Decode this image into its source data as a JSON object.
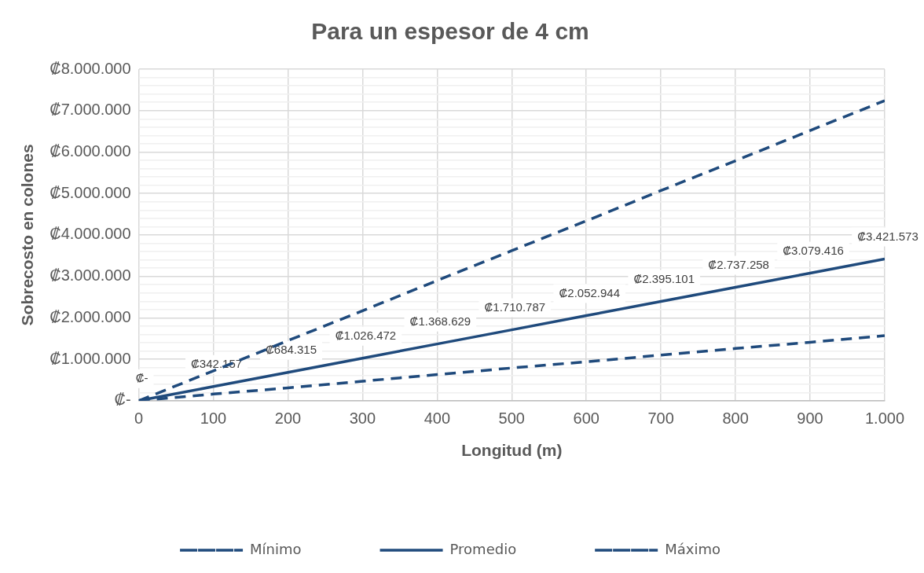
{
  "chart_data": {
    "type": "line",
    "title": "Para un espesor de 4 cm",
    "xlabel": "Longitud (m)",
    "ylabel": "Sobrecosto en colones",
    "x": [
      0,
      100,
      200,
      300,
      400,
      500,
      600,
      700,
      800,
      900,
      1000
    ],
    "series": [
      {
        "name": "Mínimo",
        "color": "#1f4a7c",
        "line_style": "dashed",
        "values": [
          0,
          160000,
          310000,
          470000,
          630000,
          790000,
          940000,
          1100000,
          1260000,
          1410000,
          1570000
        ]
      },
      {
        "name": "Promedio",
        "color": "#1f4a7c",
        "line_style": "solid",
        "values": [
          0,
          342157,
          684315,
          1026472,
          1368629,
          1710787,
          2052944,
          2395101,
          2737258,
          3079416,
          3421573
        ],
        "value_labels": [
          "₡-",
          "₡342.157",
          "₡684.315",
          "₡1.026.472",
          "₡1.368.629",
          "₡1.710.787",
          "₡2.052.944",
          "₡2.395.101",
          "₡2.737.258",
          "₡3.079.416",
          "₡3.421.573"
        ]
      },
      {
        "name": "Máximo",
        "color": "#1f4a7c",
        "line_style": "dashed",
        "values": [
          0,
          720000,
          1450000,
          2170000,
          2900000,
          3620000,
          4340000,
          5070000,
          5790000,
          6520000,
          7240000
        ]
      }
    ],
    "xlim": [
      0,
      1000
    ],
    "xticks": [
      0,
      100,
      200,
      300,
      400,
      500,
      600,
      700,
      800,
      900,
      {
        "value": 1000,
        "label": "1.000"
      }
    ],
    "ylim": [
      0,
      8000000
    ],
    "yticks": [
      {
        "value": 0,
        "label": "₡-"
      },
      {
        "value": 200000,
        "label": null
      },
      {
        "value": 400000,
        "label": null
      },
      {
        "value": 600000,
        "label": null
      },
      {
        "value": 800000,
        "label": null
      },
      {
        "value": 1000000,
        "label": "₡1.000.000"
      },
      {
        "value": 1200000,
        "label": null
      },
      {
        "value": 1400000,
        "label": null
      },
      {
        "value": 1600000,
        "label": null
      },
      {
        "value": 1800000,
        "label": null
      },
      {
        "value": 2000000,
        "label": "₡2.000.000"
      },
      {
        "value": 2200000,
        "label": null
      },
      {
        "value": 2400000,
        "label": null
      },
      {
        "value": 2600000,
        "label": null
      },
      {
        "value": 2800000,
        "label": null
      },
      {
        "value": 3000000,
        "label": "₡3.000.000"
      },
      {
        "value": 3200000,
        "label": null
      },
      {
        "value": 3400000,
        "label": null
      },
      {
        "value": 3600000,
        "label": null
      },
      {
        "value": 3800000,
        "label": null
      },
      {
        "value": 4000000,
        "label": "₡4.000.000"
      },
      {
        "value": 4200000,
        "label": null
      },
      {
        "value": 4400000,
        "label": null
      },
      {
        "value": 4600000,
        "label": null
      },
      {
        "value": 4800000,
        "label": null
      },
      {
        "value": 5000000,
        "label": "₡5.000.000"
      },
      {
        "value": 5200000,
        "label": null
      },
      {
        "value": 5400000,
        "label": null
      },
      {
        "value": 5600000,
        "label": null
      },
      {
        "value": 5800000,
        "label": null
      },
      {
        "value": 6000000,
        "label": "₡6.000.000"
      },
      {
        "value": 6200000,
        "label": null
      },
      {
        "value": 6400000,
        "label": null
      },
      {
        "value": 6600000,
        "label": null
      },
      {
        "value": 6800000,
        "label": null
      },
      {
        "value": 7000000,
        "label": "₡7.000.000"
      },
      {
        "value": 7200000,
        "label": null
      },
      {
        "value": 7400000,
        "label": null
      },
      {
        "value": 7600000,
        "label": null
      },
      {
        "value": 7800000,
        "label": null
      },
      {
        "value": 8000000,
        "label": "₡8.000.000"
      }
    ],
    "grid": true,
    "legend": "bottom"
  }
}
